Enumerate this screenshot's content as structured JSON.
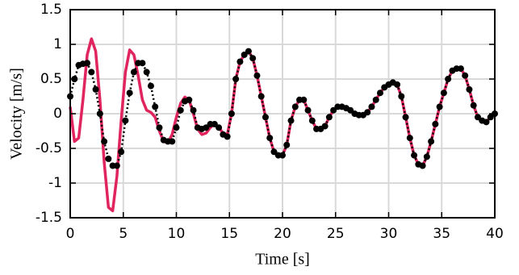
{
  "chart_data": {
    "type": "line",
    "xlabel": "Time [s]",
    "ylabel": "Velocity [m/s]",
    "xlim": [
      0,
      40
    ],
    "ylim": [
      -1.5,
      1.5
    ],
    "xticks": [
      0,
      5,
      10,
      15,
      20,
      25,
      30,
      35,
      40
    ],
    "yticks": [
      -1.5,
      -1,
      -0.5,
      0,
      0.5,
      1,
      1.5
    ],
    "grid": true,
    "x": [
      0,
      0.4,
      0.8,
      1.2,
      1.6,
      2.0,
      2.4,
      2.8,
      3.2,
      3.6,
      4.0,
      4.4,
      4.8,
      5.2,
      5.6,
      6.0,
      6.4,
      6.8,
      7.2,
      7.6,
      8.0,
      8.4,
      8.8,
      9.2,
      9.6,
      10.0,
      10.4,
      10.8,
      11.2,
      11.6,
      12.0,
      12.4,
      12.8,
      13.2,
      13.6,
      14.0,
      14.4,
      14.8,
      15.2,
      15.6,
      16.0,
      16.4,
      16.8,
      17.2,
      17.6,
      18.0,
      18.4,
      18.8,
      19.2,
      19.6,
      20.0,
      20.4,
      20.8,
      21.2,
      21.6,
      22.0,
      22.4,
      22.8,
      23.2,
      23.6,
      24.0,
      24.4,
      24.8,
      25.2,
      25.6,
      26.0,
      26.4,
      26.8,
      27.2,
      27.6,
      28.0,
      28.4,
      28.8,
      29.2,
      29.6,
      30.0,
      30.4,
      30.8,
      31.2,
      31.6,
      32.0,
      32.4,
      32.8,
      33.2,
      33.6,
      34.0,
      34.4,
      34.8,
      35.2,
      35.6,
      36.0,
      36.4,
      36.8,
      37.2,
      37.6,
      38.0,
      38.4,
      38.8,
      39.2,
      39.6,
      40.0
    ],
    "series": [
      {
        "color": "#e0245e",
        "style": "solid",
        "values": [
          0.1,
          -0.4,
          -0.35,
          0.2,
          0.85,
          1.08,
          0.9,
          0.2,
          -0.7,
          -1.35,
          -1.4,
          -0.9,
          -0.1,
          0.6,
          0.92,
          0.85,
          0.55,
          0.2,
          0.05,
          0.02,
          -0.05,
          -0.25,
          -0.4,
          -0.42,
          -0.3,
          -0.05,
          0.15,
          0.24,
          0.2,
          0.0,
          -0.22,
          -0.3,
          -0.28,
          -0.2,
          -0.15,
          -0.2,
          -0.28,
          -0.3,
          0.0,
          0.5,
          0.75,
          0.85,
          0.9,
          0.8,
          0.55,
          0.25,
          -0.05,
          -0.35,
          -0.55,
          -0.6,
          -0.6,
          -0.45,
          -0.1,
          0.1,
          0.2,
          0.2,
          0.05,
          -0.1,
          -0.22,
          -0.22,
          -0.18,
          -0.05,
          0.05,
          0.1,
          0.1,
          0.08,
          0.05,
          0.0,
          -0.02,
          -0.02,
          0.02,
          0.1,
          0.2,
          0.3,
          0.38,
          0.42,
          0.45,
          0.42,
          0.25,
          -0.05,
          -0.35,
          -0.6,
          -0.73,
          -0.75,
          -0.62,
          -0.4,
          -0.15,
          0.1,
          0.3,
          0.5,
          0.62,
          0.65,
          0.65,
          0.55,
          0.35,
          0.12,
          -0.05,
          -0.1,
          -0.12,
          -0.05,
          0.0
        ]
      },
      {
        "color": "#000000",
        "style": "dotted-markers",
        "values": [
          0.25,
          0.5,
          0.7,
          0.72,
          0.73,
          0.6,
          0.35,
          0.0,
          -0.4,
          -0.65,
          -0.75,
          -0.75,
          -0.55,
          -0.1,
          0.3,
          0.6,
          0.73,
          0.73,
          0.6,
          0.4,
          0.1,
          -0.2,
          -0.38,
          -0.4,
          -0.4,
          -0.2,
          0.05,
          0.18,
          0.2,
          0.05,
          -0.2,
          -0.22,
          -0.2,
          -0.15,
          -0.15,
          -0.2,
          -0.3,
          -0.33,
          0.0,
          0.5,
          0.75,
          0.85,
          0.9,
          0.8,
          0.55,
          0.25,
          -0.05,
          -0.35,
          -0.55,
          -0.6,
          -0.6,
          -0.45,
          -0.1,
          0.1,
          0.2,
          0.2,
          0.05,
          -0.1,
          -0.22,
          -0.22,
          -0.18,
          -0.05,
          0.05,
          0.1,
          0.1,
          0.08,
          0.05,
          0.0,
          -0.02,
          -0.02,
          0.02,
          0.1,
          0.2,
          0.3,
          0.38,
          0.42,
          0.45,
          0.42,
          0.25,
          -0.05,
          -0.35,
          -0.6,
          -0.73,
          -0.75,
          -0.62,
          -0.4,
          -0.15,
          0.1,
          0.3,
          0.5,
          0.62,
          0.65,
          0.65,
          0.55,
          0.35,
          0.12,
          -0.05,
          -0.1,
          -0.12,
          -0.05,
          0.0
        ]
      }
    ]
  }
}
